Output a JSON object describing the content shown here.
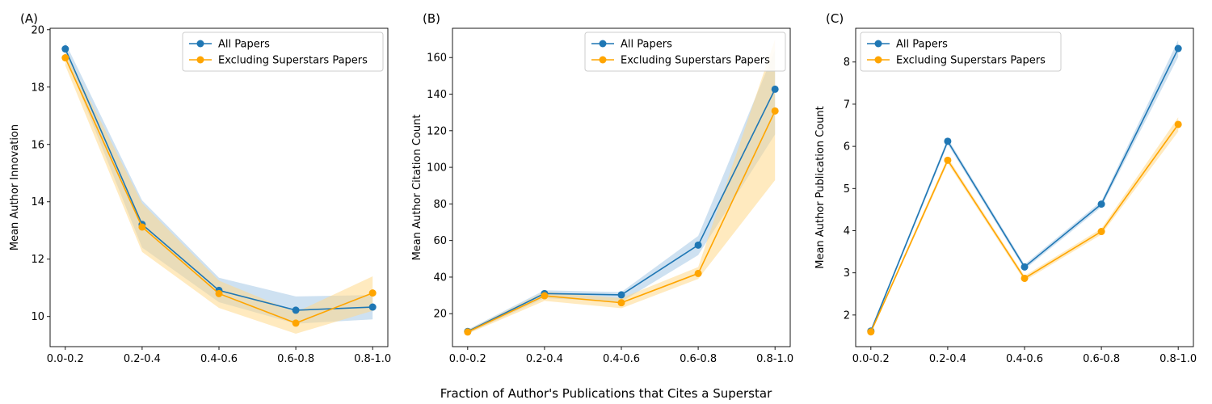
{
  "figure": {
    "xlabel": "Fraction of Author's Publications that Cites a Superstar"
  },
  "colors": {
    "all": "#1f77b4",
    "excl": "#ffa500",
    "all_band": "#a6c8e6",
    "excl_band": "#ffd98a"
  },
  "chart_data": [
    {
      "type": "line",
      "panel_label": "(A)",
      "ylabel": "Mean Author Innovation",
      "categories": [
        "0.0-0.2",
        "0.2-0.4",
        "0.4-0.6",
        "0.6-0.8",
        "0.8-1.0"
      ],
      "ylim": [
        8.95,
        20.05
      ],
      "yticks": [
        10,
        12,
        14,
        16,
        18,
        20
      ],
      "legend_position": "top-right",
      "series": [
        {
          "name": "All Papers",
          "color_key": "all",
          "values": [
            19.33,
            13.21,
            10.91,
            10.22,
            10.33
          ],
          "lower": [
            19.1,
            12.4,
            10.5,
            9.75,
            9.9
          ],
          "upper": [
            19.55,
            14.05,
            11.35,
            10.7,
            10.75
          ]
        },
        {
          "name": "Excluding Superstars Papers",
          "color_key": "excl",
          "values": [
            19.02,
            13.12,
            10.8,
            9.77,
            10.82
          ],
          "lower": [
            18.75,
            12.25,
            10.3,
            9.4,
            10.2
          ],
          "upper": [
            19.25,
            13.95,
            11.25,
            10.15,
            11.4
          ]
        }
      ]
    },
    {
      "type": "line",
      "panel_label": "(B)",
      "ylabel": "Mean Author Citation Count",
      "categories": [
        "0.0-0.2",
        "0.2-0.4",
        "0.4-0.6",
        "0.6-0.8",
        "0.8-1.0"
      ],
      "ylim": [
        2,
        176
      ],
      "yticks": [
        20,
        40,
        60,
        80,
        100,
        120,
        140,
        160
      ],
      "legend_position": "top-right",
      "series": [
        {
          "name": "All Papers",
          "color_key": "all",
          "values": [
            10.3,
            31.0,
            30.3,
            57.5,
            142.7
          ],
          "lower": [
            9.3,
            28.5,
            26.5,
            52.0,
            118.0
          ],
          "upper": [
            11.3,
            32.8,
            31.8,
            62.5,
            164.0
          ]
        },
        {
          "name": "Excluding Superstars Papers",
          "color_key": "excl",
          "values": [
            10.0,
            29.8,
            26.0,
            42.0,
            130.8
          ],
          "lower": [
            9.0,
            27.0,
            23.0,
            39.0,
            93.0
          ],
          "upper": [
            11.0,
            32.0,
            28.5,
            45.5,
            170.0
          ]
        }
      ]
    },
    {
      "type": "line",
      "panel_label": "(C)",
      "ylabel": "Mean Author Publication Count",
      "categories": [
        "0.0-0.2",
        "0.2-0.4",
        "0.4-0.6",
        "0.6-0.8",
        "0.8-1.0"
      ],
      "ylim": [
        1.25,
        8.8
      ],
      "yticks": [
        2,
        3,
        4,
        5,
        6,
        7,
        8
      ],
      "legend_position": "top-left",
      "series": [
        {
          "name": "All Papers",
          "color_key": "all",
          "values": [
            1.62,
            6.12,
            3.14,
            4.63,
            8.32
          ],
          "lower": [
            1.58,
            6.05,
            3.08,
            4.56,
            8.12
          ],
          "upper": [
            1.66,
            6.19,
            3.2,
            4.7,
            8.52
          ]
        },
        {
          "name": "Excluding Superstars Papers",
          "color_key": "excl",
          "values": [
            1.6,
            5.67,
            2.87,
            3.98,
            6.52
          ],
          "lower": [
            1.56,
            5.6,
            2.81,
            3.91,
            6.35
          ],
          "upper": [
            1.64,
            5.74,
            2.93,
            4.05,
            6.69
          ]
        }
      ]
    }
  ]
}
